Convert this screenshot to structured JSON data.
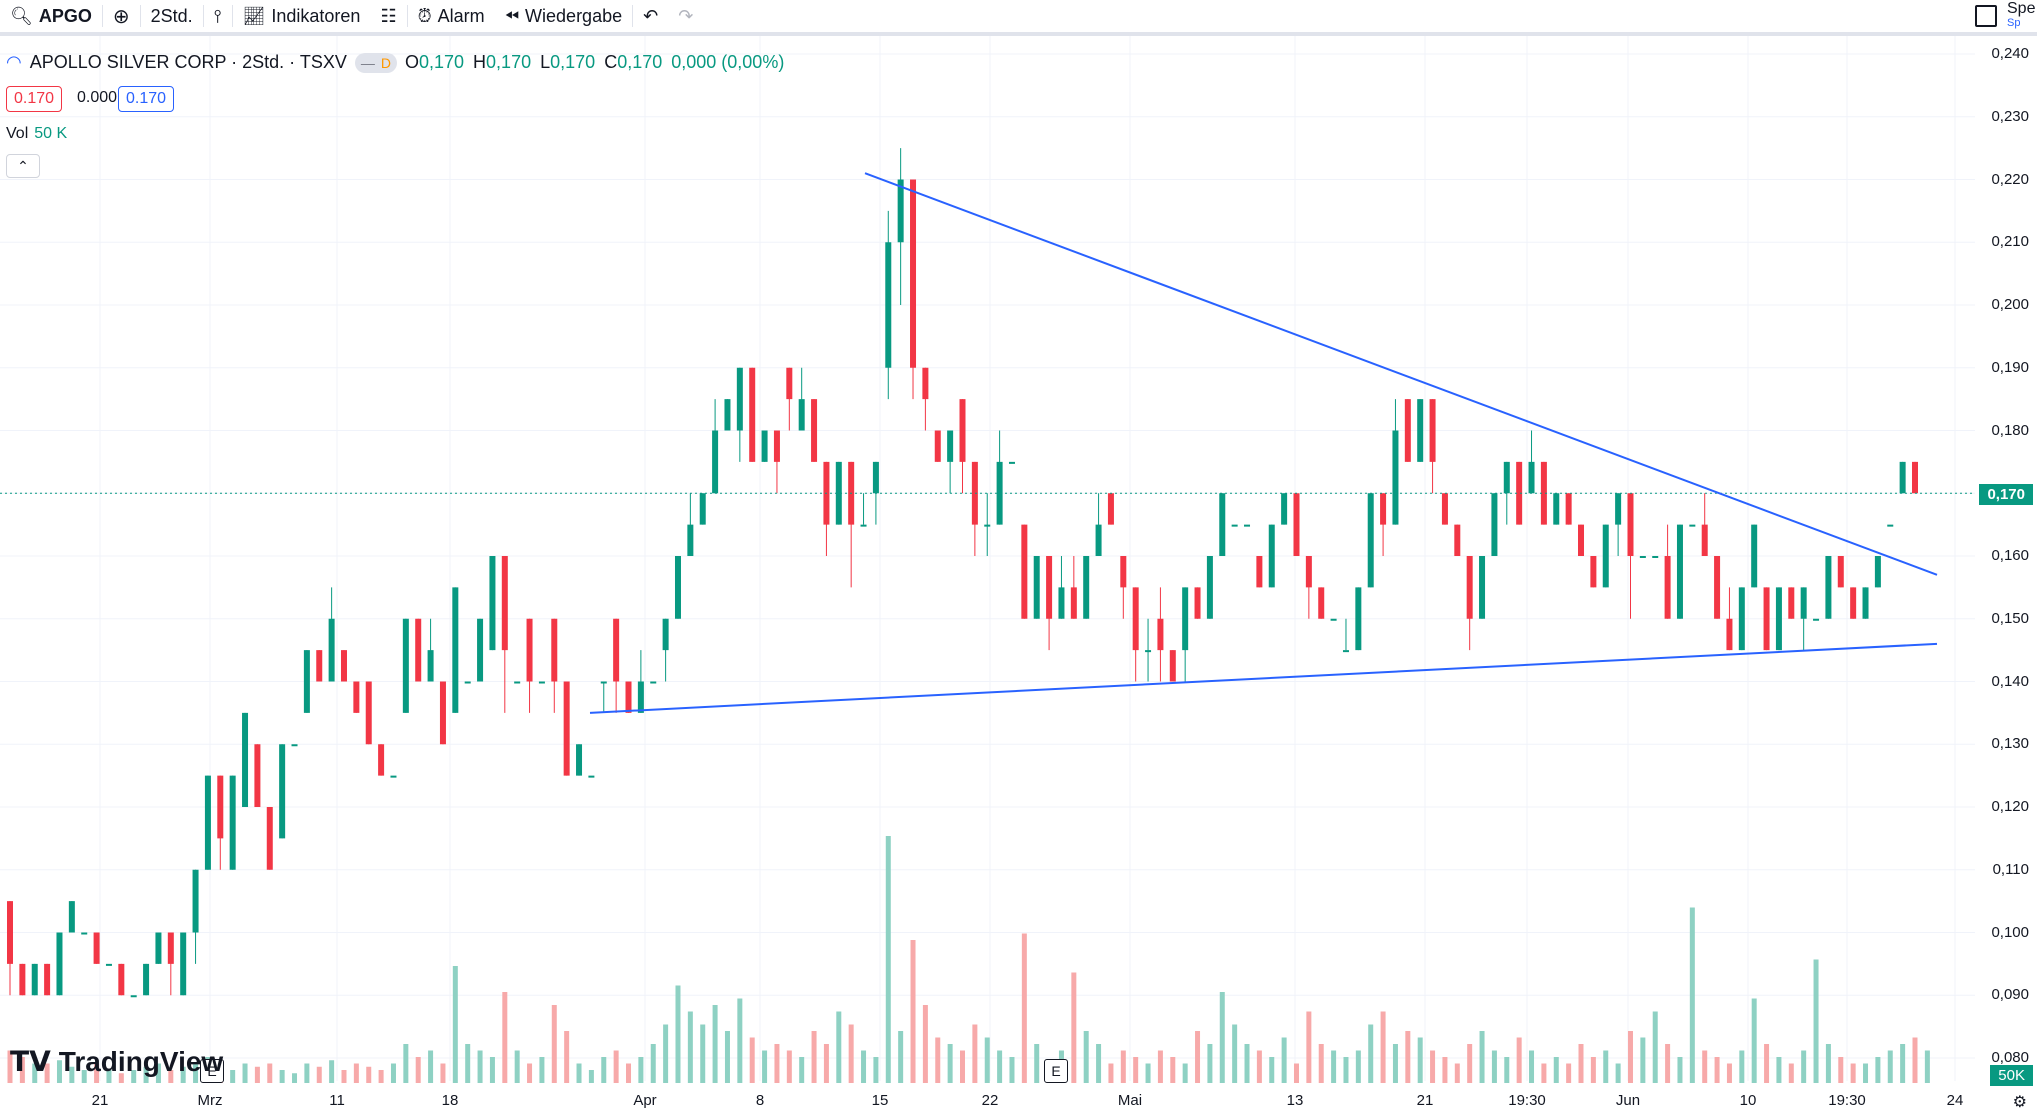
{
  "toolbar": {
    "symbol": "APGO",
    "interval": "2Std.",
    "indicators": "Indikatoren",
    "alarm": "Alarm",
    "replay": "Wiedergabe",
    "corner_label": "Spe",
    "corner_sub": "Sp"
  },
  "legend": {
    "title": "APOLLO SILVER CORP · 2Std. · TSXV",
    "badge": "D",
    "o": "0,170",
    "h": "0,170",
    "l": "0,170",
    "c": "0,170",
    "change": "0,000 (0,00%)",
    "bid": "0.170",
    "spread": "0.000",
    "ask": "0.170"
  },
  "volume": {
    "label": "Vol",
    "value": "50 K",
    "badge": "50K"
  },
  "y_axis": [
    "0,240",
    "0,230",
    "0,220",
    "0,210",
    "0,200",
    "0,190",
    "0,180",
    "0,170",
    "0,160",
    "0,150",
    "0,140",
    "0,130",
    "0,120",
    "0,110",
    "0,100",
    "0,090",
    "0,080"
  ],
  "current_price": "0,170",
  "x_axis": [
    "21",
    "Mrz",
    "11",
    "18",
    "Apr",
    "8",
    "15",
    "22",
    "Mai",
    "13",
    "21",
    "19:30",
    "Jun",
    "10",
    "19:30",
    "24"
  ],
  "event_marker": "E",
  "logo": "TradingView",
  "colors": {
    "up": "#089981",
    "down": "#f23645",
    "trendline": "#2962ff"
  },
  "chart_data": {
    "type": "candlestick",
    "ylim": [
      0.08,
      0.24
    ],
    "trendlines": [
      {
        "from": [
          "Apr 14",
          0.221
        ],
        "to": [
          "Jun 21",
          0.157
        ]
      },
      {
        "from": [
          "Mrz 29",
          0.135
        ],
        "to": [
          "Jun 21",
          0.146
        ]
      }
    ],
    "last_price": 0.17,
    "candles": [
      [
        0.105,
        0.095,
        0.105,
        0.09
      ],
      [
        0.095,
        0.09,
        0.095,
        0.09
      ],
      [
        0.09,
        0.095,
        0.095,
        0.09
      ],
      [
        0.095,
        0.09,
        0.095,
        0.09
      ],
      [
        0.09,
        0.1,
        0.1,
        0.09
      ],
      [
        0.1,
        0.105,
        0.105,
        0.1
      ],
      [
        0.1,
        0.1,
        0.1,
        0.1
      ],
      [
        0.1,
        0.095,
        0.1,
        0.095
      ],
      [
        0.095,
        0.095,
        0.095,
        0.095
      ],
      [
        0.095,
        0.09,
        0.095,
        0.09
      ],
      [
        0.09,
        0.09,
        0.09,
        0.09
      ],
      [
        0.09,
        0.095,
        0.095,
        0.09
      ],
      [
        0.095,
        0.1,
        0.1,
        0.095
      ],
      [
        0.1,
        0.095,
        0.1,
        0.09
      ],
      [
        0.09,
        0.1,
        0.1,
        0.09
      ],
      [
        0.1,
        0.11,
        0.11,
        0.095
      ],
      [
        0.11,
        0.125,
        0.125,
        0.11
      ],
      [
        0.125,
        0.115,
        0.125,
        0.11
      ],
      [
        0.11,
        0.125,
        0.125,
        0.11
      ],
      [
        0.12,
        0.135,
        0.135,
        0.12
      ],
      [
        0.13,
        0.12,
        0.13,
        0.12
      ],
      [
        0.12,
        0.11,
        0.12,
        0.11
      ],
      [
        0.115,
        0.13,
        0.13,
        0.115
      ],
      [
        0.13,
        0.13,
        0.13,
        0.13
      ],
      [
        0.135,
        0.145,
        0.145,
        0.135
      ],
      [
        0.145,
        0.14,
        0.145,
        0.14
      ],
      [
        0.14,
        0.15,
        0.155,
        0.14
      ],
      [
        0.145,
        0.14,
        0.145,
        0.14
      ],
      [
        0.14,
        0.135,
        0.14,
        0.135
      ],
      [
        0.14,
        0.13,
        0.14,
        0.13
      ],
      [
        0.13,
        0.125,
        0.13,
        0.125
      ],
      [
        0.125,
        0.125,
        0.125,
        0.125
      ],
      [
        0.135,
        0.15,
        0.15,
        0.135
      ],
      [
        0.15,
        0.14,
        0.15,
        0.14
      ],
      [
        0.14,
        0.145,
        0.15,
        0.14
      ],
      [
        0.14,
        0.13,
        0.14,
        0.13
      ],
      [
        0.135,
        0.155,
        0.155,
        0.135
      ],
      [
        0.14,
        0.14,
        0.14,
        0.14
      ],
      [
        0.14,
        0.15,
        0.15,
        0.14
      ],
      [
        0.145,
        0.16,
        0.16,
        0.145
      ],
      [
        0.16,
        0.145,
        0.16,
        0.135
      ],
      [
        0.14,
        0.14,
        0.14,
        0.14
      ],
      [
        0.15,
        0.14,
        0.15,
        0.135
      ],
      [
        0.14,
        0.14,
        0.14,
        0.14
      ],
      [
        0.15,
        0.14,
        0.15,
        0.135
      ],
      [
        0.14,
        0.125,
        0.14,
        0.125
      ],
      [
        0.125,
        0.13,
        0.13,
        0.125
      ],
      [
        0.125,
        0.125,
        0.125,
        0.125
      ],
      [
        0.14,
        0.14,
        0.14,
        0.135
      ],
      [
        0.15,
        0.14,
        0.15,
        0.135
      ],
      [
        0.14,
        0.135,
        0.14,
        0.135
      ],
      [
        0.135,
        0.14,
        0.145,
        0.135
      ],
      [
        0.14,
        0.14,
        0.14,
        0.14
      ],
      [
        0.145,
        0.15,
        0.15,
        0.14
      ],
      [
        0.15,
        0.16,
        0.16,
        0.15
      ],
      [
        0.16,
        0.165,
        0.17,
        0.16
      ],
      [
        0.165,
        0.17,
        0.17,
        0.165
      ],
      [
        0.17,
        0.18,
        0.185,
        0.17
      ],
      [
        0.18,
        0.185,
        0.185,
        0.18
      ],
      [
        0.18,
        0.19,
        0.19,
        0.175
      ],
      [
        0.19,
        0.175,
        0.19,
        0.175
      ],
      [
        0.175,
        0.18,
        0.18,
        0.175
      ],
      [
        0.18,
        0.175,
        0.18,
        0.17
      ],
      [
        0.19,
        0.185,
        0.19,
        0.18
      ],
      [
        0.18,
        0.185,
        0.19,
        0.18
      ],
      [
        0.185,
        0.175,
        0.185,
        0.175
      ],
      [
        0.175,
        0.165,
        0.175,
        0.16
      ],
      [
        0.165,
        0.175,
        0.175,
        0.165
      ],
      [
        0.175,
        0.165,
        0.175,
        0.155
      ],
      [
        0.165,
        0.165,
        0.17,
        0.165
      ],
      [
        0.17,
        0.175,
        0.175,
        0.165
      ],
      [
        0.19,
        0.21,
        0.215,
        0.185
      ],
      [
        0.21,
        0.22,
        0.225,
        0.2
      ],
      [
        0.22,
        0.19,
        0.22,
        0.185
      ],
      [
        0.19,
        0.185,
        0.19,
        0.18
      ],
      [
        0.18,
        0.175,
        0.18,
        0.175
      ],
      [
        0.175,
        0.18,
        0.18,
        0.17
      ],
      [
        0.185,
        0.175,
        0.185,
        0.17
      ],
      [
        0.175,
        0.165,
        0.175,
        0.16
      ],
      [
        0.165,
        0.165,
        0.17,
        0.16
      ],
      [
        0.165,
        0.175,
        0.18,
        0.165
      ],
      [
        0.175,
        0.175,
        0.175,
        0.175
      ],
      [
        0.165,
        0.15,
        0.165,
        0.15
      ],
      [
        0.15,
        0.16,
        0.16,
        0.15
      ],
      [
        0.16,
        0.15,
        0.16,
        0.145
      ],
      [
        0.15,
        0.155,
        0.16,
        0.15
      ],
      [
        0.155,
        0.15,
        0.16,
        0.15
      ],
      [
        0.15,
        0.16,
        0.16,
        0.15
      ],
      [
        0.16,
        0.165,
        0.17,
        0.16
      ],
      [
        0.17,
        0.165,
        0.17,
        0.165
      ],
      [
        0.16,
        0.155,
        0.16,
        0.15
      ],
      [
        0.155,
        0.145,
        0.155,
        0.14
      ],
      [
        0.145,
        0.145,
        0.15,
        0.14
      ],
      [
        0.15,
        0.145,
        0.155,
        0.14
      ],
      [
        0.145,
        0.14,
        0.145,
        0.14
      ],
      [
        0.145,
        0.155,
        0.155,
        0.14
      ],
      [
        0.155,
        0.15,
        0.155,
        0.15
      ],
      [
        0.15,
        0.16,
        0.16,
        0.15
      ],
      [
        0.16,
        0.17,
        0.17,
        0.16
      ],
      [
        0.165,
        0.165,
        0.165,
        0.165
      ],
      [
        0.165,
        0.165,
        0.165,
        0.165
      ],
      [
        0.16,
        0.155,
        0.16,
        0.155
      ],
      [
        0.155,
        0.165,
        0.165,
        0.155
      ],
      [
        0.165,
        0.17,
        0.17,
        0.165
      ],
      [
        0.17,
        0.16,
        0.17,
        0.16
      ],
      [
        0.16,
        0.155,
        0.16,
        0.15
      ],
      [
        0.155,
        0.15,
        0.155,
        0.15
      ],
      [
        0.15,
        0.15,
        0.15,
        0.15
      ],
      [
        0.145,
        0.145,
        0.15,
        0.145
      ],
      [
        0.145,
        0.155,
        0.155,
        0.145
      ],
      [
        0.155,
        0.17,
        0.17,
        0.155
      ],
      [
        0.17,
        0.165,
        0.17,
        0.16
      ],
      [
        0.165,
        0.18,
        0.185,
        0.165
      ],
      [
        0.185,
        0.175,
        0.185,
        0.175
      ],
      [
        0.175,
        0.185,
        0.185,
        0.175
      ],
      [
        0.185,
        0.175,
        0.185,
        0.17
      ],
      [
        0.17,
        0.165,
        0.17,
        0.165
      ],
      [
        0.165,
        0.16,
        0.165,
        0.16
      ],
      [
        0.16,
        0.15,
        0.16,
        0.145
      ],
      [
        0.15,
        0.16,
        0.16,
        0.15
      ],
      [
        0.16,
        0.17,
        0.17,
        0.16
      ],
      [
        0.17,
        0.175,
        0.175,
        0.165
      ],
      [
        0.175,
        0.165,
        0.175,
        0.165
      ],
      [
        0.17,
        0.175,
        0.18,
        0.17
      ],
      [
        0.175,
        0.165,
        0.175,
        0.165
      ],
      [
        0.165,
        0.17,
        0.17,
        0.165
      ],
      [
        0.17,
        0.165,
        0.17,
        0.165
      ],
      [
        0.165,
        0.16,
        0.165,
        0.16
      ],
      [
        0.16,
        0.155,
        0.16,
        0.155
      ],
      [
        0.155,
        0.165,
        0.165,
        0.155
      ],
      [
        0.165,
        0.17,
        0.17,
        0.16
      ],
      [
        0.17,
        0.16,
        0.17,
        0.15
      ],
      [
        0.16,
        0.16,
        0.16,
        0.16
      ],
      [
        0.16,
        0.16,
        0.16,
        0.16
      ],
      [
        0.16,
        0.15,
        0.165,
        0.15
      ],
      [
        0.15,
        0.165,
        0.165,
        0.15
      ],
      [
        0.165,
        0.165,
        0.165,
        0.165
      ],
      [
        0.165,
        0.16,
        0.17,
        0.16
      ],
      [
        0.16,
        0.15,
        0.16,
        0.15
      ],
      [
        0.15,
        0.145,
        0.155,
        0.145
      ],
      [
        0.145,
        0.155,
        0.155,
        0.145
      ],
      [
        0.155,
        0.165,
        0.165,
        0.155
      ],
      [
        0.155,
        0.145,
        0.155,
        0.145
      ],
      [
        0.145,
        0.155,
        0.155,
        0.145
      ],
      [
        0.155,
        0.15,
        0.155,
        0.15
      ],
      [
        0.15,
        0.155,
        0.155,
        0.145
      ],
      [
        0.15,
        0.15,
        0.15,
        0.15
      ],
      [
        0.15,
        0.16,
        0.16,
        0.15
      ],
      [
        0.16,
        0.155,
        0.16,
        0.155
      ],
      [
        0.155,
        0.15,
        0.155,
        0.15
      ],
      [
        0.15,
        0.155,
        0.155,
        0.15
      ],
      [
        0.155,
        0.16,
        0.16,
        0.155
      ],
      [
        0.165,
        0.165,
        0.165,
        0.165
      ],
      [
        0.17,
        0.175,
        0.175,
        0.17
      ],
      [
        0.175,
        0.17,
        0.175,
        0.17
      ]
    ],
    "volumes": [
      0.5,
      0.4,
      0.3,
      0.3,
      0.35,
      0.25,
      0.2,
      0.3,
      0.2,
      0.15,
      0.2,
      0.25,
      0.3,
      0.2,
      0.25,
      0.3,
      0.4,
      0.3,
      0.2,
      0.3,
      0.25,
      0.3,
      0.2,
      0.15,
      0.3,
      0.25,
      0.35,
      0.2,
      0.3,
      0.25,
      0.2,
      0.3,
      0.6,
      0.4,
      0.5,
      0.3,
      1.8,
      0.6,
      0.5,
      0.4,
      1.4,
      0.5,
      0.3,
      0.4,
      1.2,
      0.8,
      0.3,
      0.2,
      0.4,
      0.5,
      0.3,
      0.4,
      0.6,
      0.9,
      1.5,
      1.1,
      0.9,
      1.2,
      0.8,
      1.3,
      0.7,
      0.5,
      0.6,
      0.5,
      0.4,
      0.8,
      0.6,
      1.1,
      0.9,
      0.5,
      0.4,
      3.8,
      0.8,
      2.2,
      1.2,
      0.7,
      0.6,
      0.5,
      0.9,
      0.7,
      0.5,
      0.4,
      2.3,
      0.6,
      0.3,
      0.5,
      1.7,
      0.8,
      0.6,
      0.3,
      0.5,
      0.4,
      0.3,
      0.5,
      0.4,
      0.3,
      0.8,
      0.6,
      1.4,
      0.9,
      0.6,
      0.5,
      0.4,
      0.7,
      0.3,
      1.1,
      0.6,
      0.5,
      0.4,
      0.5,
      0.9,
      1.1,
      0.6,
      0.8,
      0.7,
      0.5,
      0.4,
      0.3,
      0.6,
      0.8,
      0.5,
      0.4,
      0.7,
      0.5,
      0.3,
      0.4,
      0.3,
      0.6,
      0.4,
      0.5,
      0.3,
      0.8,
      0.7,
      1.1,
      0.6,
      0.4,
      2.7,
      0.5,
      0.4,
      0.3,
      0.5,
      1.3,
      0.6,
      0.4,
      0.3,
      0.5,
      1.9,
      0.6,
      0.4,
      0.3,
      0.3,
      0.4,
      0.5,
      0.6,
      0.7,
      0.5
    ]
  }
}
